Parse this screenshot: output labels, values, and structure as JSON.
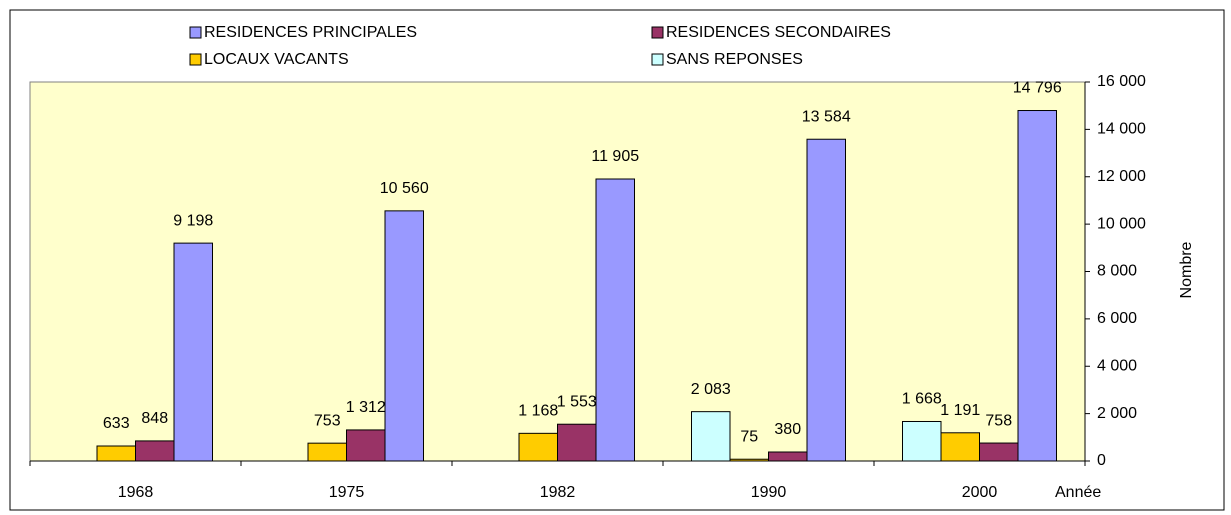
{
  "chart_data": {
    "type": "bar",
    "categories": [
      "1968",
      "1975",
      "1982",
      "1990",
      "2000"
    ],
    "x_label": "Année",
    "y_label": "Nombre",
    "series": [
      {
        "name": "RESIDENCES PRINCIPALES",
        "color": "#9999ff",
        "values": [
          9198,
          10560,
          11905,
          13584,
          14796
        ],
        "value_labels": [
          "9 198",
          "10 560",
          "11 905",
          "13 584",
          "14 796"
        ]
      },
      {
        "name": "RESIDENCES SECONDAIRES",
        "color": "#993366",
        "values": [
          848,
          1312,
          1553,
          380,
          758
        ],
        "value_labels": [
          "848",
          "1 312",
          "1 553",
          "380",
          "758"
        ]
      },
      {
        "name": "LOCAUX VACANTS",
        "color": "#ffcc00",
        "values": [
          633,
          753,
          1168,
          75,
          1191
        ],
        "value_labels": [
          "633",
          "753",
          "1 168",
          "75",
          "1 191"
        ]
      },
      {
        "name": "SANS REPONSES",
        "color": "#ccffff",
        "values": [
          null,
          null,
          null,
          2083,
          1668
        ],
        "value_labels": [
          null,
          null,
          null,
          "2 083",
          "1 668"
        ]
      }
    ],
    "ylim": [
      0,
      16000
    ],
    "yticks": [
      0,
      {
        "value": 2000,
        "label": "2 000"
      },
      {
        "value": 4000,
        "label": "4 000"
      },
      {
        "value": 6000,
        "label": "6 000"
      },
      {
        "value": 8000,
        "label": "8 000"
      },
      {
        "value": 10000,
        "label": "10 000"
      },
      {
        "value": 12000,
        "label": "12 000"
      },
      {
        "value": 14000,
        "label": "14 000"
      },
      {
        "value": 16000,
        "label": "16 000"
      }
    ],
    "y_axis_side": "right",
    "background": "#ffffcc"
  }
}
